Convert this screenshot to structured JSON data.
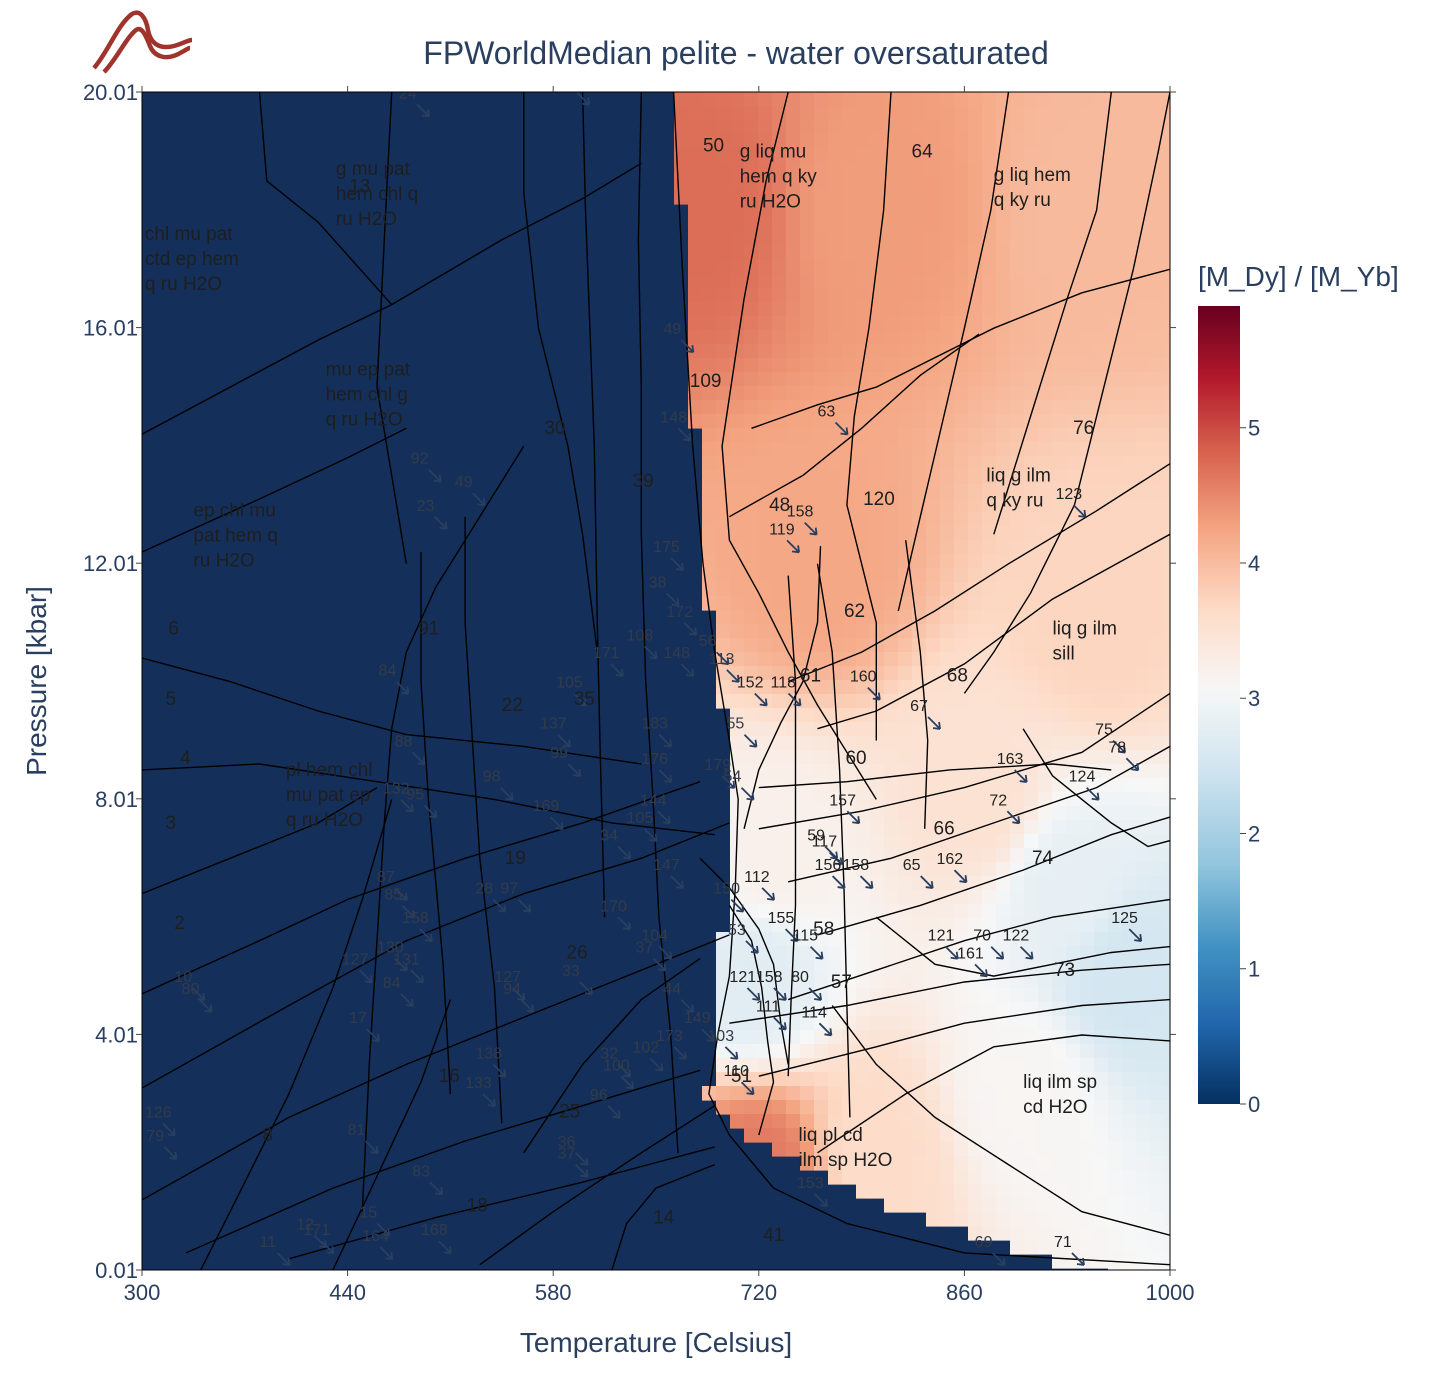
{
  "brand": {
    "logo_icon": "bird-wave-logo-icon",
    "logo_color": "#a0342d"
  },
  "chart_data": {
    "type": "heatmap",
    "title": "FPWorldMedian pelite - water oversaturated",
    "xlabel": "Temperature [Celsius]",
    "ylabel": "Pressure [kbar]",
    "xlim": [
      300,
      1000
    ],
    "ylim": [
      0.01,
      20.01
    ],
    "x_ticks": [
      "300",
      "440",
      "580",
      "720",
      "860",
      "1000"
    ],
    "y_ticks": [
      "0.01",
      "4.01",
      "8.01",
      "12.01",
      "16.01",
      "20.01"
    ],
    "colorbar": {
      "title": "[M_Dy] / [M_Yb]",
      "range": [
        0,
        5.9
      ],
      "ticks": [
        "0",
        "1",
        "2",
        "3",
        "4",
        "5"
      ],
      "colorscale": [
        "#053061",
        "#2166ac",
        "#4393c3",
        "#92c5de",
        "#d1e5f0",
        "#f7f7f7",
        "#fddbc7",
        "#f4a582",
        "#d6604d",
        "#b2182b",
        "#67001f"
      ]
    },
    "zero_field_color": "#14305a",
    "regions": [
      {
        "T": 300,
        "P": 20.01,
        "value": 0
      },
      {
        "T": 662,
        "P": 20.01,
        "value": 0
      },
      {
        "T": 690,
        "P": 12.0,
        "value": 0
      },
      {
        "T": 706,
        "P": 8.0,
        "value": 0
      },
      {
        "T": 690,
        "P": 3.0,
        "value": 0
      },
      {
        "T": 740,
        "P": 1.0,
        "value": 0
      },
      {
        "T": 860,
        "P": 0.3,
        "value": 0
      },
      {
        "T": 680,
        "P": 18.0,
        "value": 4.6
      },
      {
        "T": 800,
        "P": 18.0,
        "value": 4.2
      },
      {
        "T": 950,
        "P": 18.0,
        "value": 3.9
      },
      {
        "T": 760,
        "P": 12.0,
        "value": 4.1
      },
      {
        "T": 950,
        "P": 11.0,
        "value": 3.6
      },
      {
        "T": 870,
        "P": 8.0,
        "value": 3.4
      },
      {
        "T": 930,
        "P": 6.5,
        "value": 2.7
      },
      {
        "T": 970,
        "P": 5.0,
        "value": 2.4
      },
      {
        "T": 900,
        "P": 3.0,
        "value": 3.0
      },
      {
        "T": 800,
        "P": 2.0,
        "value": 3.5
      },
      {
        "T": 715,
        "P": 5.0,
        "value": 2.6
      },
      {
        "T": 730,
        "P": 7.0,
        "value": 3.1
      },
      {
        "T": 720,
        "P": 1.6,
        "value": 4.5
      }
    ],
    "field_labels": [
      {
        "T": 302,
        "P": 17.5,
        "lines": [
          "chl mu pat",
          "ctd ep hem",
          "q ru H2O"
        ]
      },
      {
        "T": 432,
        "P": 18.6,
        "lines": [
          "g mu pat",
          "hem chl q",
          "ru H2O"
        ]
      },
      {
        "T": 425,
        "P": 15.2,
        "lines": [
          "mu ep pat",
          "hem chl g",
          "q ru H2O"
        ]
      },
      {
        "T": 335,
        "P": 12.8,
        "lines": [
          "ep chl mu",
          "pat hem q",
          "ru H2O"
        ]
      },
      {
        "T": 398,
        "P": 8.4,
        "lines": [
          "pl hem chl",
          "mu pat ep",
          "q ru H2O"
        ]
      },
      {
        "T": 707,
        "P": 18.9,
        "lines": [
          "g liq mu",
          "hem q ky",
          "ru H2O"
        ]
      },
      {
        "T": 880,
        "P": 18.5,
        "lines": [
          "g liq hem",
          "q ky ru"
        ]
      },
      {
        "T": 875,
        "P": 13.4,
        "lines": [
          "liq g ilm",
          "q ky ru"
        ]
      },
      {
        "T": 920,
        "P": 10.8,
        "lines": [
          "liq g ilm",
          "sill"
        ]
      },
      {
        "T": 900,
        "P": 3.1,
        "lines": [
          "liq ilm sp",
          "cd H2O"
        ]
      },
      {
        "T": 747,
        "P": 2.2,
        "lines": [
          "liq pl cd",
          "ilm sp H2O"
        ]
      }
    ],
    "field_numbers": [
      {
        "n": "13",
        "T": 441,
        "P": 18.3
      },
      {
        "n": "50",
        "T": 682,
        "P": 19.0
      },
      {
        "n": "64",
        "T": 824,
        "P": 18.9
      },
      {
        "n": "30",
        "T": 574,
        "P": 14.2
      },
      {
        "n": "39",
        "T": 634,
        "P": 13.3
      },
      {
        "n": "6",
        "T": 318,
        "P": 10.8
      },
      {
        "n": "5",
        "T": 316,
        "P": 9.6
      },
      {
        "n": "4",
        "T": 326,
        "P": 8.6
      },
      {
        "n": "3",
        "T": 316,
        "P": 7.5
      },
      {
        "n": "2",
        "T": 322,
        "P": 5.8
      },
      {
        "n": "91",
        "T": 488,
        "P": 10.8
      },
      {
        "n": "22",
        "T": 545,
        "P": 9.5
      },
      {
        "n": "35",
        "T": 594,
        "P": 9.6
      },
      {
        "n": "19",
        "T": 547,
        "P": 6.9
      },
      {
        "n": "26",
        "T": 589,
        "P": 5.3
      },
      {
        "n": "16",
        "T": 502,
        "P": 3.2
      },
      {
        "n": "25",
        "T": 584,
        "P": 2.6
      },
      {
        "n": "8",
        "T": 382,
        "P": 2.2
      },
      {
        "n": "18",
        "T": 521,
        "P": 1.0
      },
      {
        "n": "14",
        "T": 648,
        "P": 0.8
      },
      {
        "n": "41",
        "T": 723,
        "P": 0.5
      },
      {
        "n": "109",
        "T": 673,
        "P": 15.0
      },
      {
        "n": "48",
        "T": 727,
        "P": 12.9
      },
      {
        "n": "120",
        "T": 791,
        "P": 13.0
      },
      {
        "n": "62",
        "T": 778,
        "P": 11.1
      },
      {
        "n": "68",
        "T": 848,
        "P": 10.0
      },
      {
        "n": "60",
        "T": 779,
        "P": 8.6
      },
      {
        "n": "66",
        "T": 839,
        "P": 7.4
      },
      {
        "n": "74",
        "T": 906,
        "P": 6.9
      },
      {
        "n": "58",
        "T": 757,
        "P": 5.7
      },
      {
        "n": "57",
        "T": 769,
        "P": 4.8
      },
      {
        "n": "73",
        "T": 921,
        "P": 5.0
      },
      {
        "n": "51",
        "T": 701,
        "P": 3.2
      },
      {
        "n": "76",
        "T": 934,
        "P": 14.2
      },
      {
        "n": "61",
        "T": 748,
        "P": 10.0
      }
    ],
    "small_labels": [
      {
        "n": "40",
        "T": 584,
        "P": 20.1
      },
      {
        "n": "24",
        "T": 475,
        "P": 19.9
      },
      {
        "n": "49",
        "T": 655,
        "P": 15.9
      },
      {
        "n": "63",
        "T": 760,
        "P": 14.5
      },
      {
        "n": "148",
        "T": 653,
        "P": 14.4
      },
      {
        "n": "92",
        "T": 483,
        "P": 13.7
      },
      {
        "n": "23",
        "T": 487,
        "P": 12.9
      },
      {
        "n": "49",
        "T": 513,
        "P": 13.3
      },
      {
        "n": "158",
        "T": 739,
        "P": 12.8
      },
      {
        "n": "119",
        "T": 727,
        "P": 12.5
      },
      {
        "n": "123",
        "T": 922,
        "P": 13.1
      },
      {
        "n": "175",
        "T": 648,
        "P": 12.2
      },
      {
        "n": "38",
        "T": 645,
        "P": 11.6
      },
      {
        "n": "172",
        "T": 657,
        "P": 11.1
      },
      {
        "n": "56",
        "T": 679,
        "P": 10.6
      },
      {
        "n": "108",
        "T": 630,
        "P": 10.7
      },
      {
        "n": "171",
        "T": 607,
        "P": 10.4
      },
      {
        "n": "148",
        "T": 655,
        "P": 10.4
      },
      {
        "n": "113",
        "T": 686,
        "P": 10.3
      },
      {
        "n": "152",
        "T": 705,
        "P": 9.9
      },
      {
        "n": "118",
        "T": 728,
        "P": 9.9
      },
      {
        "n": "160",
        "T": 782,
        "P": 10.0
      },
      {
        "n": "84",
        "T": 461,
        "P": 10.1
      },
      {
        "n": "105",
        "T": 582,
        "P": 9.9
      },
      {
        "n": "67",
        "T": 823,
        "P": 9.5
      },
      {
        "n": "137",
        "T": 571,
        "P": 9.2
      },
      {
        "n": "183",
        "T": 640,
        "P": 9.2
      },
      {
        "n": "55",
        "T": 698,
        "P": 9.2
      },
      {
        "n": "99",
        "T": 578,
        "P": 8.7
      },
      {
        "n": "88",
        "T": 472,
        "P": 8.9
      },
      {
        "n": "176",
        "T": 640,
        "P": 8.6
      },
      {
        "n": "179",
        "T": 683,
        "P": 8.5
      },
      {
        "n": "75",
        "T": 949,
        "P": 9.1
      },
      {
        "n": "78",
        "T": 958,
        "P": 8.8
      },
      {
        "n": "163",
        "T": 882,
        "P": 8.6
      },
      {
        "n": "54",
        "T": 696,
        "P": 8.3
      },
      {
        "n": "98",
        "T": 532,
        "P": 8.3
      },
      {
        "n": "132",
        "T": 464,
        "P": 8.1
      },
      {
        "n": "95",
        "T": 480,
        "P": 8.0
      },
      {
        "n": "169",
        "T": 566,
        "P": 7.8
      },
      {
        "n": "157",
        "T": 768,
        "P": 7.9
      },
      {
        "n": "72",
        "T": 877,
        "P": 7.9
      },
      {
        "n": "144",
        "T": 639,
        "P": 7.9
      },
      {
        "n": "105",
        "T": 630,
        "P": 7.6
      },
      {
        "n": "124",
        "T": 931,
        "P": 8.3
      },
      {
        "n": "34",
        "T": 612,
        "P": 7.3
      },
      {
        "n": "59",
        "T": 753,
        "P": 7.3
      },
      {
        "n": "117",
        "T": 756,
        "P": 7.2
      },
      {
        "n": "147",
        "T": 648,
        "P": 6.8
      },
      {
        "n": "162",
        "T": 841,
        "P": 6.9
      },
      {
        "n": "65",
        "T": 818,
        "P": 6.8
      },
      {
        "n": "158",
        "T": 777,
        "P": 6.8
      },
      {
        "n": "112",
        "T": 710,
        "P": 6.6
      },
      {
        "n": "156",
        "T": 758,
        "P": 6.8
      },
      {
        "n": "87",
        "T": 460,
        "P": 6.6
      },
      {
        "n": "97",
        "T": 544,
        "P": 6.4
      },
      {
        "n": "28",
        "T": 527,
        "P": 6.4
      },
      {
        "n": "85",
        "T": 465,
        "P": 6.3
      },
      {
        "n": "150",
        "T": 689,
        "P": 6.4
      },
      {
        "n": "170",
        "T": 612,
        "P": 6.1
      },
      {
        "n": "155",
        "T": 726,
        "P": 5.9
      },
      {
        "n": "53",
        "T": 699,
        "P": 5.7
      },
      {
        "n": "115",
        "T": 743,
        "P": 5.6
      },
      {
        "n": "158",
        "T": 477,
        "P": 5.9
      },
      {
        "n": "104",
        "T": 640,
        "P": 5.6
      },
      {
        "n": "121",
        "T": 835,
        "P": 5.6
      },
      {
        "n": "70",
        "T": 866,
        "P": 5.6
      },
      {
        "n": "122",
        "T": 886,
        "P": 5.6
      },
      {
        "n": "125",
        "T": 960,
        "P": 5.9
      },
      {
        "n": "37",
        "T": 636,
        "P": 5.4
      },
      {
        "n": "130",
        "T": 460,
        "P": 5.4
      },
      {
        "n": "161",
        "T": 855,
        "P": 5.3
      },
      {
        "n": "127",
        "T": 436,
        "P": 5.2
      },
      {
        "n": "131",
        "T": 471,
        "P": 5.2
      },
      {
        "n": "33",
        "T": 586,
        "P": 5.0
      },
      {
        "n": "121",
        "T": 700,
        "P": 4.9
      },
      {
        "n": "158",
        "T": 718,
        "P": 4.9
      },
      {
        "n": "80",
        "T": 742,
        "P": 4.9
      },
      {
        "n": "10",
        "T": 322,
        "P": 4.9
      },
      {
        "n": "80",
        "T": 327,
        "P": 4.7
      },
      {
        "n": "84",
        "T": 464,
        "P": 4.8
      },
      {
        "n": "127",
        "T": 540,
        "P": 4.9
      },
      {
        "n": "94",
        "T": 546,
        "P": 4.7
      },
      {
        "n": "44",
        "T": 655,
        "P": 4.7
      },
      {
        "n": "111",
        "T": 718,
        "P": 4.4
      },
      {
        "n": "114",
        "T": 749,
        "P": 4.3
      },
      {
        "n": "17",
        "T": 441,
        "P": 4.2
      },
      {
        "n": "149",
        "T": 669,
        "P": 4.2
      },
      {
        "n": "173",
        "T": 650,
        "P": 3.9
      },
      {
        "n": "103",
        "T": 685,
        "P": 3.9
      },
      {
        "n": "102",
        "T": 634,
        "P": 3.7
      },
      {
        "n": "32",
        "T": 612,
        "P": 3.6
      },
      {
        "n": "138",
        "T": 527,
        "P": 3.6
      },
      {
        "n": "100",
        "T": 614,
        "P": 3.4
      },
      {
        "n": "133",
        "T": 520,
        "P": 3.1
      },
      {
        "n": "110",
        "T": 696,
        "P": 3.3
      },
      {
        "n": "96",
        "T": 605,
        "P": 2.9
      },
      {
        "n": "126",
        "T": 302,
        "P": 2.6
      },
      {
        "n": "79",
        "T": 303,
        "P": 2.2
      },
      {
        "n": "81",
        "T": 440,
        "P": 2.3
      },
      {
        "n": "36",
        "T": 583,
        "P": 2.1
      },
      {
        "n": "37",
        "T": 583,
        "P": 1.9
      },
      {
        "n": "83",
        "T": 484,
        "P": 1.6
      },
      {
        "n": "153",
        "T": 746,
        "P": 1.4
      },
      {
        "n": "15",
        "T": 448,
        "P": 0.9
      },
      {
        "n": "12",
        "T": 405,
        "P": 0.7
      },
      {
        "n": "171",
        "T": 410,
        "P": 0.6
      },
      {
        "n": "164",
        "T": 450,
        "P": 0.5
      },
      {
        "n": "168",
        "T": 490,
        "P": 0.6
      },
      {
        "n": "11",
        "T": 380,
        "P": 0.4
      },
      {
        "n": "69",
        "T": 867,
        "P": 0.4
      },
      {
        "n": "71",
        "T": 921,
        "P": 0.4
      }
    ]
  }
}
